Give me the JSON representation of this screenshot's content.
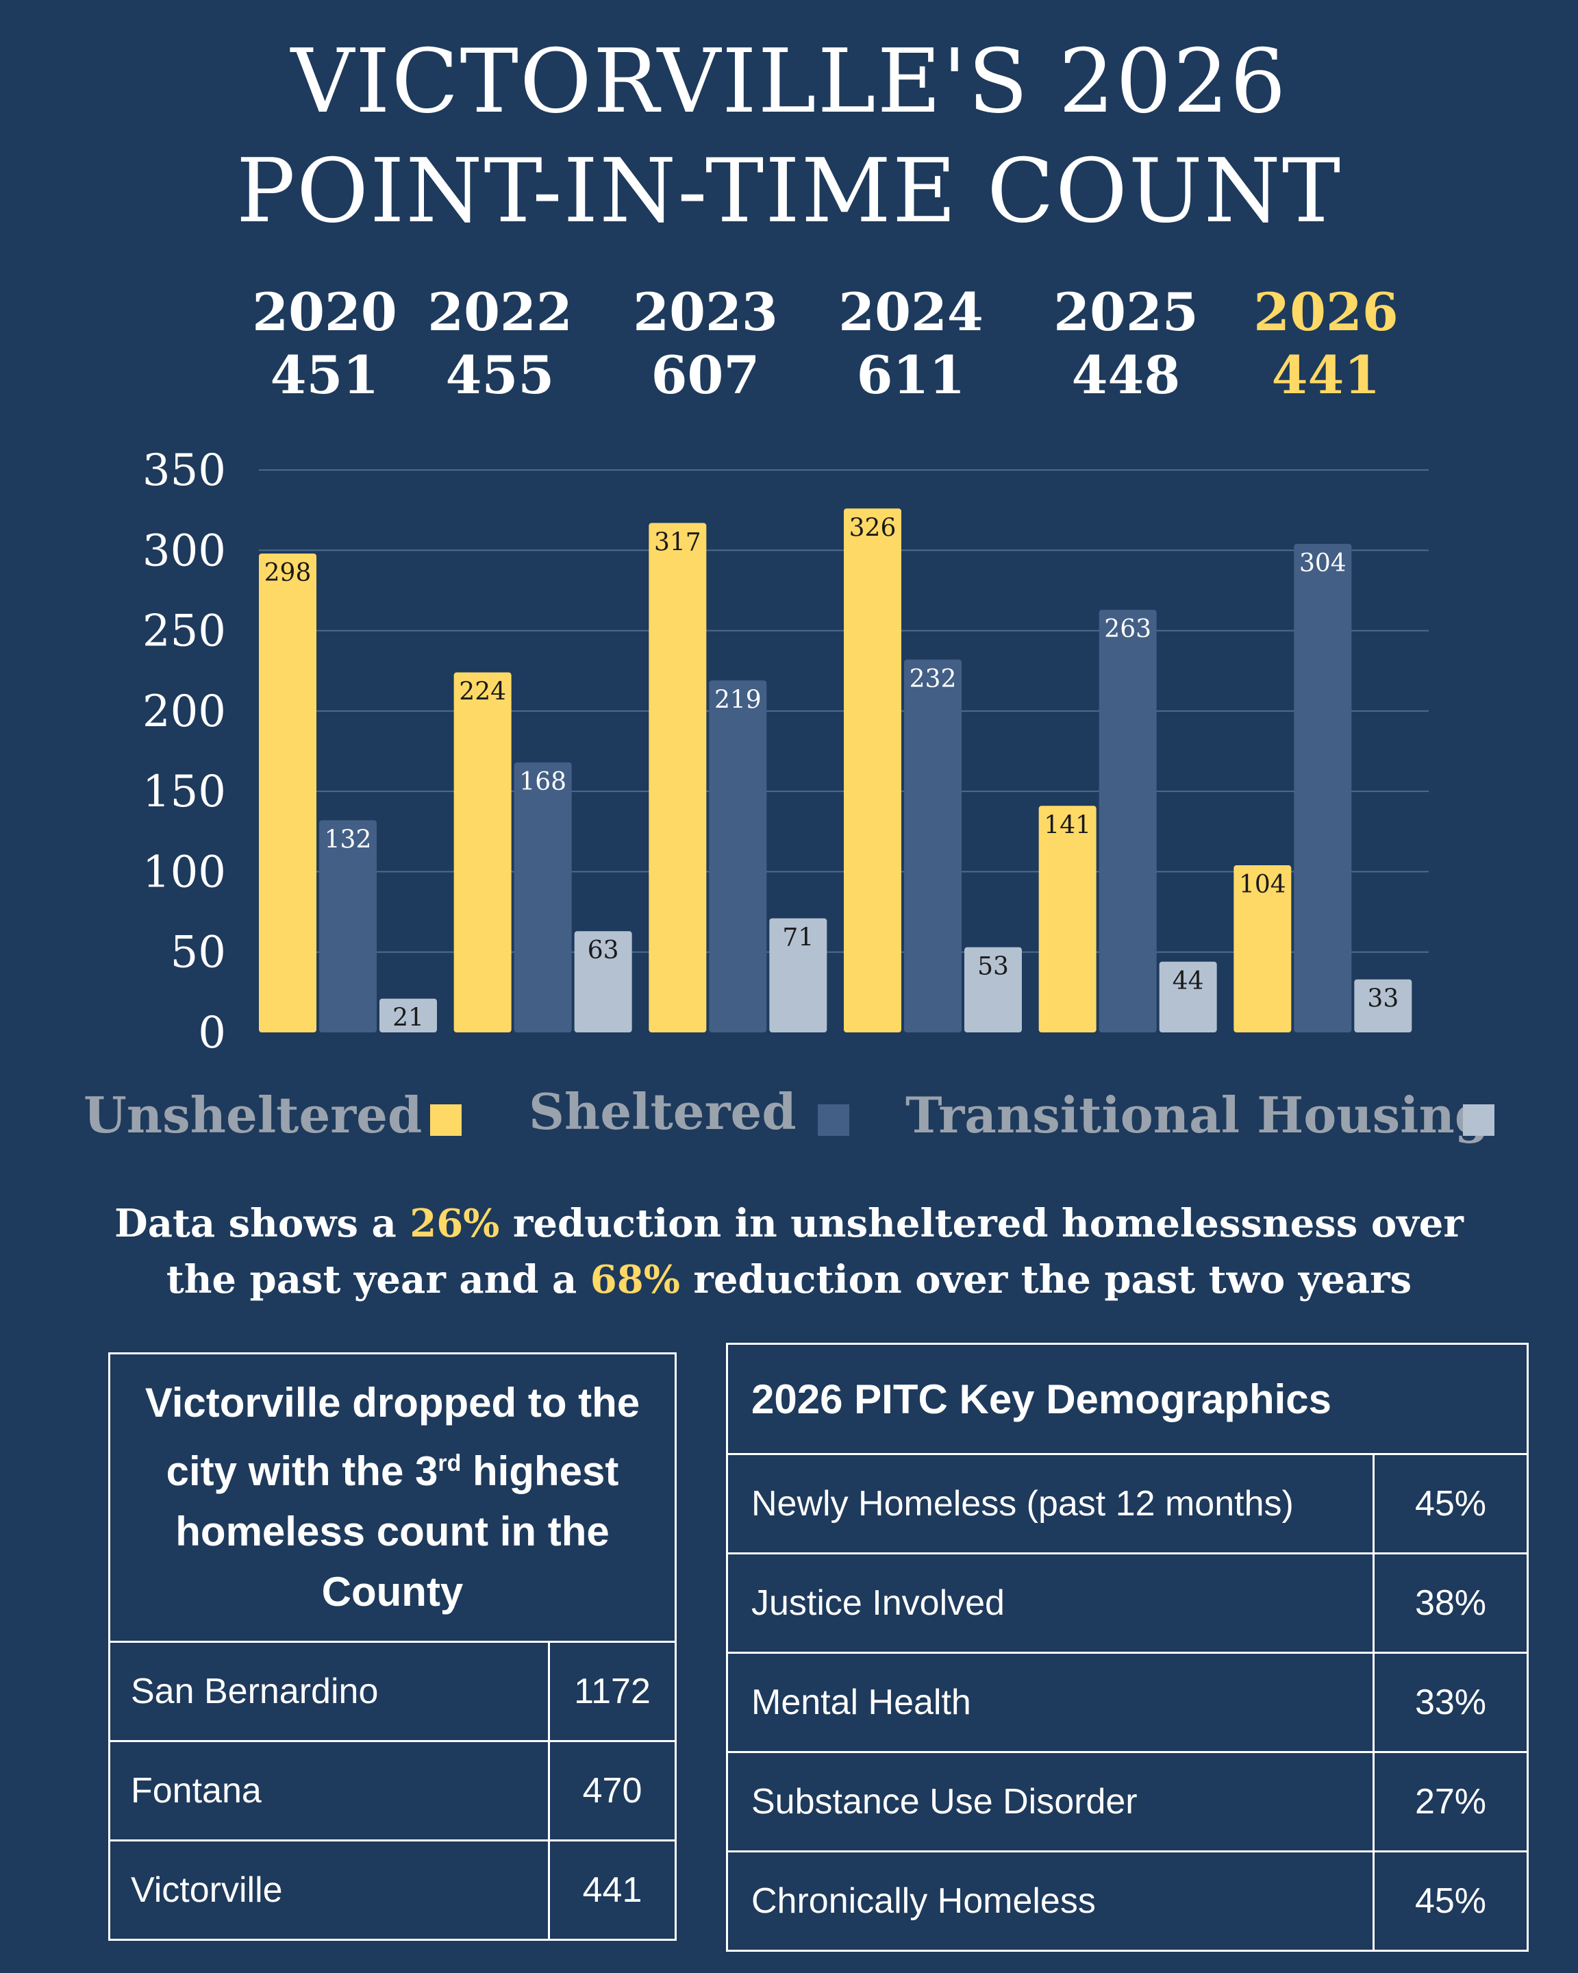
{
  "title_line1": "VICTORVILLE'S 2026",
  "title_line2": "POINT-IN-TIME COUNT",
  "totals": [
    {
      "year": "2020",
      "total": "451"
    },
    {
      "year": "2022",
      "total": "455"
    },
    {
      "year": "2023",
      "total": "607"
    },
    {
      "year": "2024",
      "total": "611"
    },
    {
      "year": "2025",
      "total": "448"
    },
    {
      "year": "2026",
      "total": "441"
    }
  ],
  "colors": {
    "background": "#1e3a5c",
    "unsheltered": "#ffd966",
    "sheltered": "#435f85",
    "transitional": "#b3c1d1",
    "highlight": "#ffd966",
    "legend_text": "#9aa3ad"
  },
  "chart_data": {
    "type": "bar",
    "categories": [
      "2020",
      "2022",
      "2023",
      "2024",
      "2025",
      "2026"
    ],
    "series": [
      {
        "name": "Unsheltered",
        "values": [
          298,
          224,
          317,
          326,
          141,
          104
        ]
      },
      {
        "name": "Sheltered",
        "values": [
          132,
          168,
          219,
          232,
          263,
          304
        ]
      },
      {
        "name": "Transitional Housing",
        "values": [
          21,
          63,
          71,
          53,
          44,
          33
        ]
      }
    ],
    "ylim": [
      0,
      350
    ],
    "yticks": [
      0,
      50,
      100,
      150,
      200,
      250,
      300,
      350
    ],
    "grid": true,
    "legend": "bottom"
  },
  "summary": {
    "part1": "Data shows a ",
    "pct1": "26%",
    "part2": " reduction in unsheltered homelessness over",
    "part3": "the past year and a ",
    "pct2": "68%",
    "part4": " reduction over the past two years"
  },
  "ranking": {
    "heading_part1": "Victorville dropped to the city with the 3",
    "heading_sup": "rd",
    "heading_part2": " highest  homeless count in the County",
    "rows": [
      {
        "name": "San Bernardino",
        "value": "1172"
      },
      {
        "name": "Fontana",
        "value": "470"
      },
      {
        "name": "Victorville",
        "value": "441"
      }
    ]
  },
  "demographics": {
    "heading": "2026 PITC Key Demographics",
    "rows": [
      {
        "name": "Newly Homeless (past 12 months)",
        "value": "45%"
      },
      {
        "name": "Justice Involved",
        "value": "38%"
      },
      {
        "name": "Mental Health",
        "value": "33%"
      },
      {
        "name": "Substance Use Disorder",
        "value": "27%"
      },
      {
        "name": "Chronically Homeless",
        "value": "45%"
      }
    ]
  }
}
